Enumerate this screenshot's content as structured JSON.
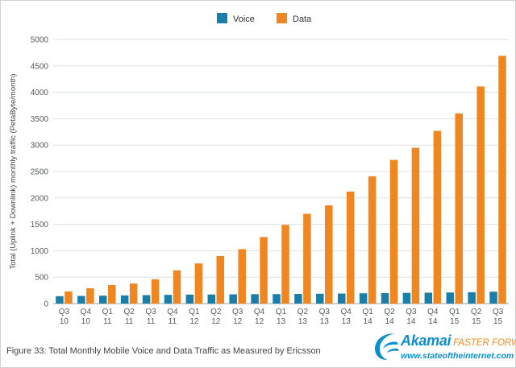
{
  "chart_data": {
    "type": "bar",
    "title": "",
    "xlabel": "",
    "ylabel": "Total (Uplink + Downlink) monthly traffic (PetaByte/month)",
    "ylim": [
      0,
      5000
    ],
    "yticks": [
      0,
      500,
      1000,
      1500,
      2000,
      2500,
      3000,
      3500,
      4000,
      4500,
      5000
    ],
    "grid": true,
    "legend_position": "top",
    "categories": [
      [
        "Q3",
        "10"
      ],
      [
        "Q4",
        "10"
      ],
      [
        "Q1",
        "11"
      ],
      [
        "Q2",
        "11"
      ],
      [
        "Q3",
        "11"
      ],
      [
        "Q4",
        "11"
      ],
      [
        "Q1",
        "12"
      ],
      [
        "Q2",
        "12"
      ],
      [
        "Q3",
        "12"
      ],
      [
        "Q4",
        "12"
      ],
      [
        "Q1",
        "13"
      ],
      [
        "Q2",
        "13"
      ],
      [
        "Q3",
        "13"
      ],
      [
        "Q4",
        "13"
      ],
      [
        "Q1",
        "14"
      ],
      [
        "Q2",
        "14"
      ],
      [
        "Q3",
        "14"
      ],
      [
        "Q4",
        "14"
      ],
      [
        "Q1",
        "15"
      ],
      [
        "Q2",
        "15"
      ],
      [
        "Q3",
        "15"
      ]
    ],
    "series": [
      {
        "name": "Voice",
        "color": "#1a7fa8",
        "values": [
          140,
          145,
          150,
          155,
          160,
          165,
          170,
          172,
          175,
          178,
          180,
          183,
          186,
          190,
          195,
          198,
          202,
          206,
          210,
          215,
          225
        ]
      },
      {
        "name": "Data",
        "color": "#f0861f",
        "values": [
          230,
          290,
          350,
          380,
          460,
          630,
          760,
          900,
          1030,
          1260,
          1490,
          1700,
          1860,
          2120,
          2410,
          2720,
          2950,
          3270,
          3600,
          4110,
          4690
        ]
      }
    ]
  },
  "caption": "Figure 33: Total Monthly Mobile Voice and Data Traffic as Measured by Ericsson",
  "logo": {
    "brand": "Akamai",
    "tagline": "FASTER FORWARD",
    "url": "www.stateoftheinternet.com"
  }
}
